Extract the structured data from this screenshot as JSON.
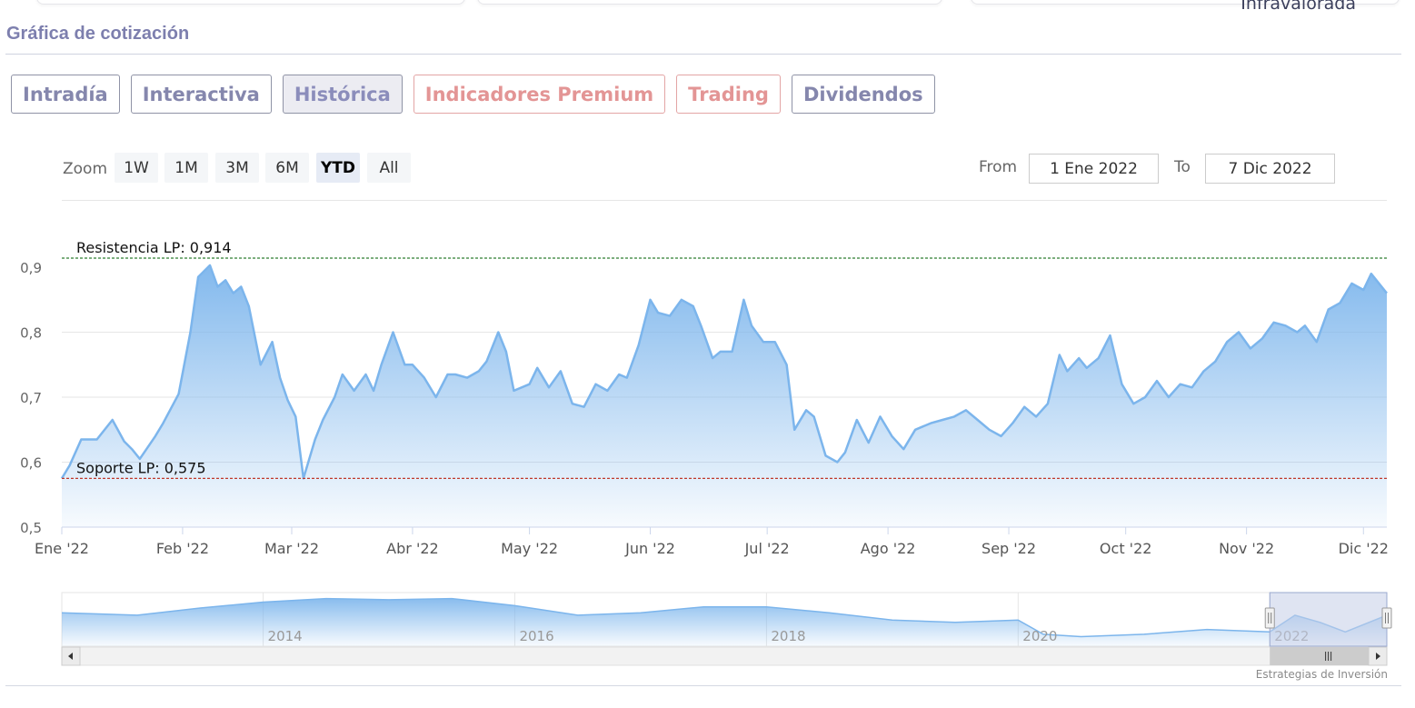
{
  "header": {
    "top_right_label": "Infravalorada",
    "section_title": "Gráfica de cotización"
  },
  "tabs": [
    {
      "label": "Intradía",
      "active": false,
      "premium": false
    },
    {
      "label": "Interactiva",
      "active": false,
      "premium": false
    },
    {
      "label": "Histórica",
      "active": true,
      "premium": false
    },
    {
      "label": "Indicadores Premium",
      "active": false,
      "premium": true
    },
    {
      "label": "Trading",
      "active": false,
      "premium": true
    },
    {
      "label": "Dividendos",
      "active": false,
      "premium": false
    }
  ],
  "zoom": {
    "label": "Zoom",
    "buttons": [
      "1W",
      "1M",
      "3M",
      "6M",
      "YTD",
      "All"
    ],
    "active": "YTD"
  },
  "range": {
    "from_label": "From",
    "from_value": "1 Ene 2022",
    "to_label": "To",
    "to_value": "7 Dic 2022"
  },
  "credit": "Estrategias de Inversión",
  "colors": {
    "line": "#7cb5ec",
    "resistance": "#2e7d32",
    "support": "#c0392b",
    "navigator_mask": "#c4cde8"
  },
  "chart_data": {
    "type": "area",
    "ylim": [
      0.5,
      0.9
    ],
    "yticks": [
      "0,9",
      "0,8",
      "0,7",
      "0,6",
      "0,5"
    ],
    "ytick_values": [
      0.9,
      0.8,
      0.7,
      0.6,
      0.5
    ],
    "x_range": [
      "2022-01-01",
      "2022-12-07"
    ],
    "xticks": [
      {
        "label": "Ene '22",
        "date": "2022-01-01"
      },
      {
        "label": "Feb '22",
        "date": "2022-02-01"
      },
      {
        "label": "Mar '22",
        "date": "2022-03-01"
      },
      {
        "label": "Abr '22",
        "date": "2022-04-01"
      },
      {
        "label": "May '22",
        "date": "2022-05-01"
      },
      {
        "label": "Jun '22",
        "date": "2022-06-01"
      },
      {
        "label": "Jul '22",
        "date": "2022-07-01"
      },
      {
        "label": "Ago '22",
        "date": "2022-08-01"
      },
      {
        "label": "Sep '22",
        "date": "2022-09-01"
      },
      {
        "label": "Oct '22",
        "date": "2022-10-01"
      },
      {
        "label": "Nov '22",
        "date": "2022-11-01"
      },
      {
        "label": "Dic '22",
        "date": "2022-12-01"
      }
    ],
    "series": [
      {
        "x": [
          "2022-01-01",
          "2022-01-03",
          "2022-01-06",
          "2022-01-10",
          "2022-01-14",
          "2022-01-17",
          "2022-01-19",
          "2022-01-21",
          "2022-01-25",
          "2022-01-27",
          "2022-01-31",
          "2022-02-03",
          "2022-02-05",
          "2022-02-08",
          "2022-02-10",
          "2022-02-12",
          "2022-02-14",
          "2022-02-16",
          "2022-02-18",
          "2022-02-21",
          "2022-02-24",
          "2022-02-26",
          "2022-02-28",
          "2022-03-02",
          "2022-03-04",
          "2022-03-07",
          "2022-03-09",
          "2022-03-12",
          "2022-03-14",
          "2022-03-17",
          "2022-03-20",
          "2022-03-22",
          "2022-03-24",
          "2022-03-27",
          "2022-03-30",
          "2022-04-01",
          "2022-04-04",
          "2022-04-07",
          "2022-04-10",
          "2022-04-12",
          "2022-04-15",
          "2022-04-18",
          "2022-04-20",
          "2022-04-23",
          "2022-04-25",
          "2022-04-27",
          "2022-05-01",
          "2022-05-03",
          "2022-05-06",
          "2022-05-09",
          "2022-05-12",
          "2022-05-15",
          "2022-05-18",
          "2022-05-21",
          "2022-05-24",
          "2022-05-26",
          "2022-05-29",
          "2022-06-01",
          "2022-06-03",
          "2022-06-06",
          "2022-06-09",
          "2022-06-12",
          "2022-06-14",
          "2022-06-17",
          "2022-06-19",
          "2022-06-22",
          "2022-06-25",
          "2022-06-27",
          "2022-06-30",
          "2022-07-03",
          "2022-07-06",
          "2022-07-08",
          "2022-07-11",
          "2022-07-13",
          "2022-07-16",
          "2022-07-19",
          "2022-07-21",
          "2022-07-24",
          "2022-07-27",
          "2022-07-30",
          "2022-08-02",
          "2022-08-05",
          "2022-08-08",
          "2022-08-12",
          "2022-08-15",
          "2022-08-18",
          "2022-08-21",
          "2022-08-24",
          "2022-08-27",
          "2022-08-30",
          "2022-09-02",
          "2022-09-05",
          "2022-09-08",
          "2022-09-11",
          "2022-09-14",
          "2022-09-16",
          "2022-09-19",
          "2022-09-21",
          "2022-09-24",
          "2022-09-27",
          "2022-09-30",
          "2022-10-03",
          "2022-10-06",
          "2022-10-09",
          "2022-10-12",
          "2022-10-15",
          "2022-10-18",
          "2022-10-21",
          "2022-10-24",
          "2022-10-27",
          "2022-10-30",
          "2022-11-02",
          "2022-11-05",
          "2022-11-08",
          "2022-11-11",
          "2022-11-14",
          "2022-11-16",
          "2022-11-19",
          "2022-11-22",
          "2022-11-25",
          "2022-11-28",
          "2022-12-01",
          "2022-12-03",
          "2022-12-07"
        ],
        "y": [
          0.575,
          0.595,
          0.635,
          0.635,
          0.665,
          0.632,
          0.62,
          0.605,
          0.64,
          0.66,
          0.705,
          0.8,
          0.885,
          0.903,
          0.87,
          0.88,
          0.86,
          0.87,
          0.84,
          0.75,
          0.785,
          0.73,
          0.695,
          0.67,
          0.575,
          0.635,
          0.665,
          0.7,
          0.735,
          0.71,
          0.735,
          0.71,
          0.75,
          0.8,
          0.75,
          0.75,
          0.73,
          0.7,
          0.735,
          0.735,
          0.73,
          0.74,
          0.755,
          0.8,
          0.77,
          0.71,
          0.72,
          0.745,
          0.715,
          0.74,
          0.69,
          0.685,
          0.72,
          0.71,
          0.735,
          0.73,
          0.78,
          0.85,
          0.83,
          0.825,
          0.85,
          0.84,
          0.81,
          0.76,
          0.77,
          0.77,
          0.85,
          0.81,
          0.785,
          0.785,
          0.75,
          0.65,
          0.68,
          0.67,
          0.61,
          0.6,
          0.615,
          0.665,
          0.63,
          0.67,
          0.64,
          0.62,
          0.65,
          0.66,
          0.665,
          0.67,
          0.68,
          0.665,
          0.65,
          0.64,
          0.66,
          0.685,
          0.67,
          0.69,
          0.765,
          0.74,
          0.76,
          0.745,
          0.76,
          0.795,
          0.72,
          0.69,
          0.7,
          0.725,
          0.7,
          0.72,
          0.715,
          0.74,
          0.755,
          0.785,
          0.8,
          0.775,
          0.79,
          0.815,
          0.81,
          0.8,
          0.81,
          0.785,
          0.835,
          0.845,
          0.875,
          0.865,
          0.89,
          0.86
        ]
      }
    ],
    "annotations": [
      {
        "label": "Resistencia LP: 0,914",
        "value": 0.914
      },
      {
        "label": "Soporte LP: 0,575",
        "value": 0.575
      }
    ],
    "navigator": {
      "xticks": [
        {
          "label": "2014",
          "year": 2014
        },
        {
          "label": "2016",
          "year": 2016
        },
        {
          "label": "2018",
          "year": 2018
        },
        {
          "label": "2020",
          "year": 2020
        },
        {
          "label": "2022",
          "year": 2022
        }
      ],
      "x_range": [
        2012.4,
        2022.93
      ],
      "selected_range": [
        2022.0,
        2022.93
      ],
      "years": [
        2012.4,
        2013.0,
        2013.5,
        2014.0,
        2014.5,
        2015.0,
        2015.5,
        2016.0,
        2016.5,
        2017.0,
        2017.5,
        2018.0,
        2018.5,
        2019.0,
        2019.5,
        2020.0,
        2020.2,
        2020.5,
        2021.0,
        2021.5,
        2022.0,
        2022.2,
        2022.4,
        2022.6,
        2022.93
      ],
      "values": [
        0.88,
        0.86,
        0.92,
        0.97,
        1.0,
        0.99,
        1.0,
        0.94,
        0.86,
        0.88,
        0.93,
        0.93,
        0.88,
        0.82,
        0.8,
        0.82,
        0.7,
        0.68,
        0.7,
        0.74,
        0.72,
        0.86,
        0.8,
        0.72,
        0.86
      ]
    }
  }
}
